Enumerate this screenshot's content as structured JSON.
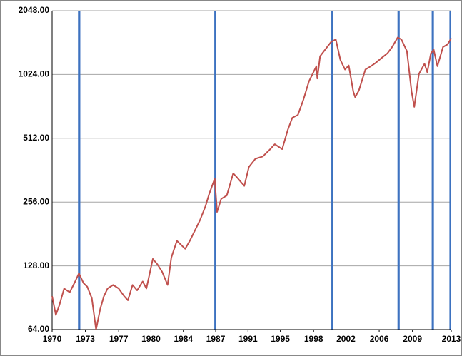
{
  "chart_data": {
    "type": "line",
    "log_scale_y": true,
    "grid": true,
    "ylim": [
      64,
      2048
    ],
    "yticks": [
      {
        "value": 64,
        "label": "64.00"
      },
      {
        "value": 128,
        "label": "128.00"
      },
      {
        "value": 256,
        "label": "256.00"
      },
      {
        "value": 512,
        "label": "512.00"
      },
      {
        "value": 1024,
        "label": "1024.00"
      },
      {
        "value": 2048,
        "label": "2048.00"
      }
    ],
    "xlim": [
      1970,
      2013.2
    ],
    "xticks": [
      {
        "value": 1970,
        "label": "1970"
      },
      {
        "value": 1973.6,
        "label": "1973"
      },
      {
        "value": 1977.2,
        "label": "1977"
      },
      {
        "value": 1980.7,
        "label": "1980"
      },
      {
        "value": 1984.2,
        "label": "1984"
      },
      {
        "value": 1987.7,
        "label": "1987"
      },
      {
        "value": 1991.2,
        "label": "1991"
      },
      {
        "value": 1994.7,
        "label": "1995"
      },
      {
        "value": 1998.3,
        "label": "1998"
      },
      {
        "value": 2001.8,
        "label": "2002"
      },
      {
        "value": 2005.4,
        "label": "2006"
      },
      {
        "value": 2009.0,
        "label": "2009"
      },
      {
        "value": 2013.2,
        "label": "2013"
      }
    ],
    "x": [
      1970.0,
      1970.4,
      1970.8,
      1971.3,
      1971.9,
      1972.5,
      1972.9,
      1973.4,
      1973.8,
      1974.3,
      1974.75,
      1975.2,
      1975.6,
      1976.0,
      1976.6,
      1977.2,
      1977.8,
      1978.2,
      1978.7,
      1979.2,
      1979.8,
      1980.2,
      1980.9,
      1981.4,
      1981.9,
      1982.5,
      1982.9,
      1983.5,
      1984.4,
      1984.9,
      1985.5,
      1986.0,
      1986.6,
      1987.0,
      1987.6,
      1987.85,
      1988.3,
      1988.9,
      1989.6,
      1990.0,
      1990.8,
      1991.3,
      1992.0,
      1992.8,
      1993.5,
      1994.1,
      1994.9,
      1995.5,
      1996.0,
      1996.6,
      1997.2,
      1997.8,
      1998.6,
      1998.7,
      1999.0,
      1999.6,
      2000.2,
      2000.7,
      2001.2,
      2001.7,
      2002.1,
      2002.6,
      2002.8,
      2003.2,
      2003.9,
      2004.5,
      2005.0,
      2005.6,
      2006.3,
      2006.8,
      2007.4,
      2007.8,
      2008.4,
      2008.9,
      2009.2,
      2009.7,
      2010.3,
      2010.6,
      2011.0,
      2011.3,
      2011.7,
      2012.3,
      2012.8,
      2013.2
    ],
    "series": [
      {
        "color": "#c0504d",
        "values": [
          92,
          75,
          84,
          100,
          96,
          108,
          118,
          106,
          102,
          90,
          64,
          80,
          92,
          100,
          104,
          100,
          92,
          88,
          104,
          98,
          108,
          100,
          138,
          130,
          120,
          104,
          140,
          168,
          154,
          168,
          190,
          210,
          245,
          280,
          330,
          230,
          265,
          275,
          350,
          335,
          305,
          375,
          410,
          420,
          450,
          480,
          455,
          560,
          640,
          660,
          780,
          950,
          1120,
          980,
          1250,
          1350,
          1460,
          1500,
          1200,
          1080,
          1130,
          850,
          800,
          860,
          1080,
          1120,
          1160,
          1220,
          1290,
          1380,
          1530,
          1500,
          1320,
          850,
          720,
          1030,
          1150,
          1050,
          1290,
          1340,
          1120,
          1380,
          1420,
          1520
        ]
      }
    ],
    "bands": [
      [
        1972.8,
        1973.05
      ],
      [
        1987.55,
        1987.72
      ],
      [
        2000.22,
        2000.38
      ],
      [
        2007.38,
        2007.62
      ],
      [
        2011.08,
        2011.32
      ],
      [
        2013.0,
        2013.18
      ]
    ],
    "band_color": "#3d72c0"
  }
}
